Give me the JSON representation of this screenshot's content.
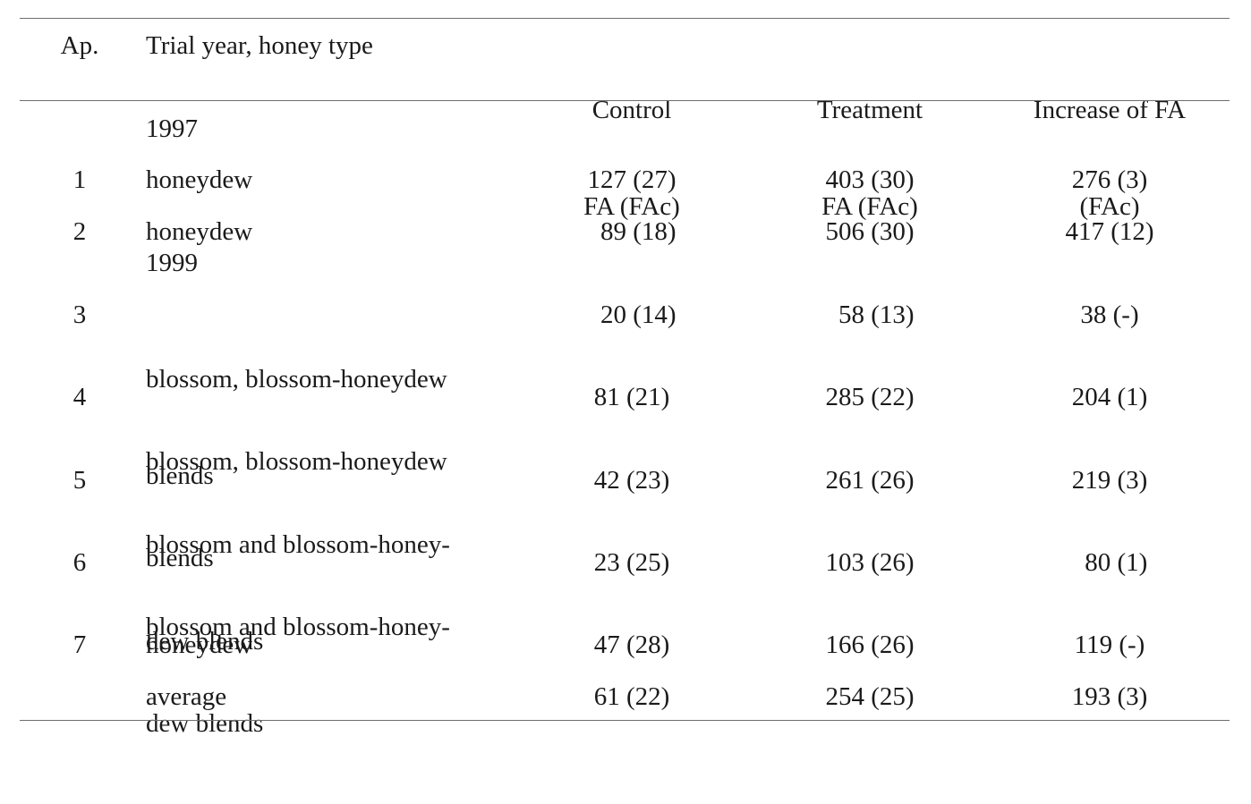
{
  "table": {
    "headers": {
      "ap": "Ap.",
      "trial": "Trial year, honey type",
      "control": [
        "Control",
        "FA (FAc)"
      ],
      "treatment": [
        "Treatment",
        "FA (FAc)"
      ],
      "increase": [
        "Increase of FA",
        "(FAc)"
      ]
    },
    "years": {
      "y1997": "1997",
      "y1999": "1999"
    },
    "rows": [
      {
        "ap": "1",
        "type": [
          "honeydew"
        ],
        "control": "127 (27)",
        "treatment": "403 (30)",
        "increase": "276 (3)"
      },
      {
        "ap": "2",
        "type": [
          "honeydew"
        ],
        "control": "  89 (18)",
        "treatment": "506 (30)",
        "increase": "417 (12)"
      },
      {
        "ap": "3",
        "type": [
          "blossom, blossom-honeydew",
          "blends"
        ],
        "control": "  20 (14)",
        "treatment": "  58 (13)",
        "increase": "38 (-)"
      },
      {
        "ap": "4",
        "type": [
          "blossom, blossom-honeydew",
          "blends"
        ],
        "control": "81 (21)",
        "treatment": "285 (22)",
        "increase": "204 (1)"
      },
      {
        "ap": "5",
        "type": [
          "blossom and blossom-honey-",
          "dew blends"
        ],
        "control": "42 (23)",
        "treatment": "261 (26)",
        "increase": "219 (3)"
      },
      {
        "ap": "6",
        "type": [
          "blossom and blossom-honey-",
          "dew blends"
        ],
        "control": "23 (25)",
        "treatment": "103 (26)",
        "increase": "  80 (1)"
      },
      {
        "ap": "7",
        "type": [
          "honeydew"
        ],
        "control": "47 (28)",
        "treatment": "166 (26)",
        "increase": "119 (-)"
      },
      {
        "ap": "",
        "type": [
          "average"
        ],
        "control": "61 (22)",
        "treatment": "254 (25)",
        "increase": "193 (3)"
      }
    ]
  }
}
